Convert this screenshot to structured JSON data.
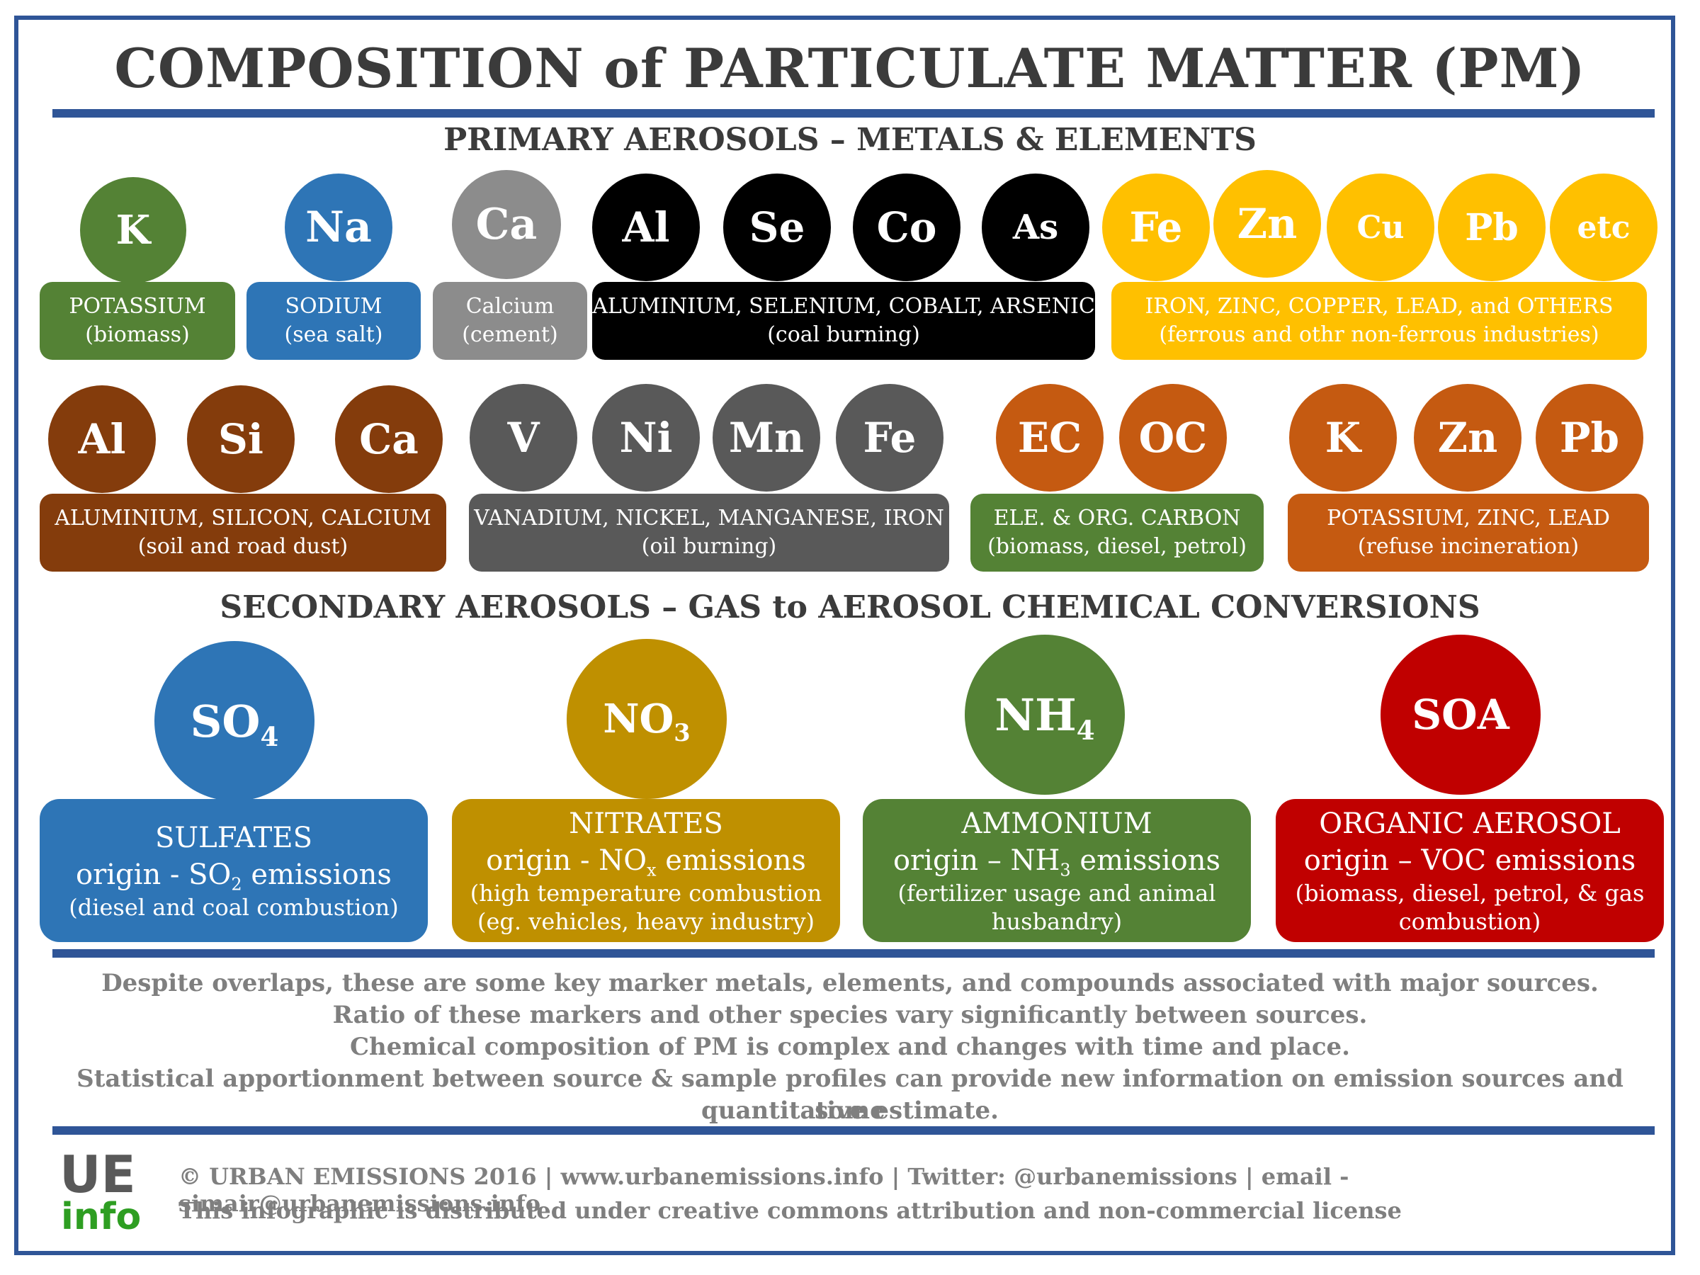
{
  "title": "COMPOSITION of PARTICULATE MATTER (PM)",
  "primary_heading": "PRIMARY AEROSOLS – METALS & ELEMENTS",
  "secondary_heading": "SECONDARY AEROSOLS – GAS to AEROSOL CHEMICAL CONVERSIONS",
  "colors": {
    "frame": "#2f5597",
    "green": "#548235",
    "blue": "#2e75b6",
    "light_gray": "#8c8c8c",
    "black": "#000000",
    "yellow": "#ffc000",
    "brown": "#843c0c",
    "dark_gray": "#595959",
    "orange": "#c55a11",
    "gold": "#bf9000",
    "red": "#c00000"
  },
  "row1": {
    "potassium": {
      "circles": [
        "K"
      ],
      "line1": "POTASSIUM",
      "line2": "(biomass)"
    },
    "sodium": {
      "circles": [
        "Na"
      ],
      "line1": "SODIUM",
      "line2": "(sea salt)"
    },
    "calcium": {
      "circles": [
        "Ca"
      ],
      "line1": "Calcium",
      "line2": "(cement)"
    },
    "coal": {
      "circles": [
        "Al",
        "Se",
        "Co",
        "As"
      ],
      "line1": "ALUMINIUM, SELENIUM, COBALT, ARSENIC",
      "line2": "(coal burning)"
    },
    "ferrous": {
      "circles": [
        "Fe",
        "Zn",
        "Cu",
        "Pb",
        "etc"
      ],
      "line1": "IRON, ZINC, COPPER, LEAD, and OTHERS",
      "line2": "(ferrous and othr non-ferrous industries)"
    }
  },
  "row2": {
    "dust": {
      "circles": [
        "Al",
        "Si",
        "Ca"
      ],
      "line1": "ALUMINIUM, SILICON, CALCIUM",
      "line2": "(soil and road dust)"
    },
    "oil": {
      "circles": [
        "V",
        "Ni",
        "Mn",
        "Fe"
      ],
      "line1": "VANADIUM, NICKEL, MANGANESE, IRON",
      "line2": "(oil burning)"
    },
    "carbon": {
      "circles": [
        "EC",
        "OC"
      ],
      "line1": "ELE. & ORG. CARBON",
      "line2": "(biomass, diesel, petrol)"
    },
    "refuse": {
      "circles": [
        "K",
        "Zn",
        "Pb"
      ],
      "line1": "POTASSIUM, ZINC, LEAD",
      "line2": "(refuse incineration)"
    }
  },
  "secondary": {
    "sulfates": {
      "formula": "SO",
      "formula_sub": "4",
      "line1": "SULFATES",
      "line2_pre": "origin - SO",
      "line2_sub": "2",
      "line2_post": " emissions",
      "line3": "(diesel and coal combustion)",
      "line4": ""
    },
    "nitrates": {
      "formula": "NO",
      "formula_sub": "3",
      "line1": "NITRATES",
      "line2_pre": "origin - NO",
      "line2_sub": "x",
      "line2_post": " emissions",
      "line3": "(high temperature combustion",
      "line4": "(eg. vehicles, heavy industry)"
    },
    "ammonium": {
      "formula": "NH",
      "formula_sub": "4",
      "line1": "AMMONIUM",
      "line2_pre": "origin – NH",
      "line2_sub": "3",
      "line2_post": " emissions",
      "line3": "(fertilizer usage and animal",
      "line4": "husbandry)"
    },
    "soa": {
      "formula": "SOA",
      "formula_sub": "",
      "line1": "ORGANIC AEROSOL",
      "line2_pre": "origin – VOC emissions",
      "line2_sub": "",
      "line2_post": "",
      "line3": "(biomass, diesel, petrol, & gas",
      "line4": "combustion)"
    }
  },
  "notes": [
    "Despite overlaps, these are some key marker metals, elements, and compounds associated with major sources.",
    "Ratio of these markers and other species vary significantly between sources.",
    "Chemical composition of PM is complex and changes with time and place.",
    "Statistical apportionment between source & sample profiles can provide new information on emission sources and some",
    "quantitative estimate."
  ],
  "footer": {
    "line1": "© URBAN EMISSIONS 2016 | www.urbanemissions.info | Twitter: @urbanemissions | email - simair@urbanemissions.info",
    "line2": "This infographic is distributed under creative commons attribution and non-commercial license"
  },
  "logo": {
    "ue": "UE",
    "info": "info"
  }
}
